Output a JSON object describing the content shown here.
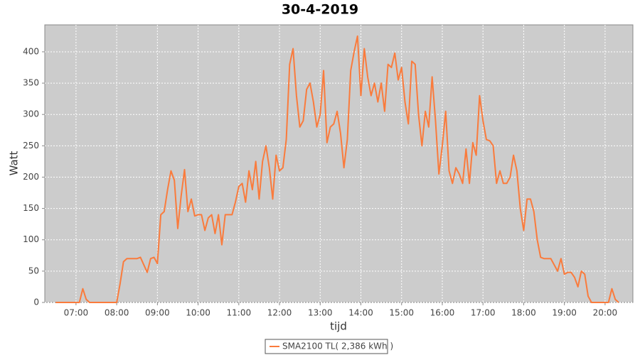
{
  "chart_data": {
    "type": "line",
    "title": "30-4-2019",
    "x_label": "tijd",
    "y_label": "Watt",
    "x": [
      "06:30",
      "06:35",
      "06:40",
      "06:45",
      "06:50",
      "06:55",
      "07:00",
      "07:05",
      "07:10",
      "07:15",
      "07:20",
      "07:25",
      "07:30",
      "07:35",
      "07:40",
      "07:45",
      "07:50",
      "07:55",
      "08:00",
      "08:05",
      "08:10",
      "08:15",
      "08:20",
      "08:25",
      "08:30",
      "08:35",
      "08:40",
      "08:45",
      "08:50",
      "08:55",
      "09:00",
      "09:05",
      "09:10",
      "09:15",
      "09:20",
      "09:25",
      "09:30",
      "09:35",
      "09:40",
      "09:45",
      "09:50",
      "09:55",
      "10:00",
      "10:05",
      "10:10",
      "10:15",
      "10:20",
      "10:25",
      "10:30",
      "10:35",
      "10:40",
      "10:45",
      "10:50",
      "10:55",
      "11:00",
      "11:05",
      "11:10",
      "11:15",
      "11:20",
      "11:25",
      "11:30",
      "11:35",
      "11:40",
      "11:45",
      "11:50",
      "11:55",
      "12:00",
      "12:05",
      "12:10",
      "12:15",
      "12:20",
      "12:25",
      "12:30",
      "12:35",
      "12:40",
      "12:45",
      "12:50",
      "12:55",
      "13:00",
      "13:05",
      "13:10",
      "13:15",
      "13:20",
      "13:25",
      "13:30",
      "13:35",
      "13:40",
      "13:45",
      "13:50",
      "13:55",
      "14:00",
      "14:05",
      "14:10",
      "14:15",
      "14:20",
      "14:25",
      "14:30",
      "14:35",
      "14:40",
      "14:45",
      "14:50",
      "14:55",
      "15:00",
      "15:05",
      "15:10",
      "15:15",
      "15:20",
      "15:25",
      "15:30",
      "15:35",
      "15:40",
      "15:45",
      "15:50",
      "15:55",
      "16:00",
      "16:05",
      "16:10",
      "16:15",
      "16:20",
      "16:25",
      "16:30",
      "16:35",
      "16:40",
      "16:45",
      "16:50",
      "16:55",
      "17:00",
      "17:05",
      "17:10",
      "17:15",
      "17:20",
      "17:25",
      "17:30",
      "17:35",
      "17:40",
      "17:45",
      "17:50",
      "17:55",
      "18:00",
      "18:05",
      "18:10",
      "18:15",
      "18:20",
      "18:25",
      "18:30",
      "18:35",
      "18:40",
      "18:45",
      "18:50",
      "18:55",
      "19:00",
      "19:05",
      "19:10",
      "19:15",
      "19:20",
      "19:25",
      "19:30",
      "19:35",
      "19:40",
      "19:45",
      "19:50",
      "19:55",
      "20:00",
      "20:05",
      "20:10",
      "20:15",
      "20:20"
    ],
    "series": [
      {
        "name": "SMA2100 TL( 2,386 kWh )",
        "color": "#fa7b3c",
        "values": [
          0,
          0,
          0,
          0,
          0,
          0,
          0,
          0,
          22,
          5,
          0,
          0,
          0,
          0,
          0,
          0,
          0,
          0,
          0,
          30,
          65,
          70,
          70,
          70,
          70,
          72,
          60,
          48,
          70,
          72,
          62,
          140,
          145,
          180,
          210,
          195,
          118,
          170,
          212,
          145,
          165,
          138,
          140,
          140,
          115,
          135,
          140,
          110,
          140,
          92,
          140,
          140,
          140,
          160,
          185,
          190,
          160,
          210,
          180,
          225,
          165,
          225,
          250,
          215,
          165,
          235,
          210,
          215,
          260,
          380,
          405,
          330,
          280,
          290,
          340,
          350,
          320,
          280,
          300,
          370,
          255,
          280,
          285,
          305,
          270,
          215,
          260,
          370,
          400,
          425,
          330,
          405,
          360,
          330,
          350,
          320,
          350,
          305,
          380,
          375,
          398,
          355,
          375,
          320,
          285,
          385,
          380,
          300,
          250,
          305,
          280,
          360,
          290,
          205,
          250,
          305,
          210,
          190,
          215,
          205,
          190,
          245,
          190,
          255,
          235,
          330,
          290,
          260,
          258,
          250,
          190,
          210,
          190,
          190,
          200,
          235,
          210,
          150,
          115,
          165,
          165,
          145,
          100,
          72,
          70,
          70,
          70,
          60,
          50,
          70,
          45,
          48,
          48,
          40,
          25,
          50,
          45,
          10,
          0,
          0,
          0,
          0,
          0,
          0,
          22,
          5,
          0
        ]
      }
    ],
    "xlim": [
      "06:14",
      "20:41"
    ],
    "xticks": [
      "07:00",
      "08:00",
      "09:00",
      "10:00",
      "11:00",
      "12:00",
      "13:00",
      "14:00",
      "15:00",
      "16:00",
      "17:00",
      "18:00",
      "19:00",
      "20:00"
    ],
    "ylim": [
      0,
      443
    ],
    "yticks": [
      0,
      50,
      100,
      150,
      200,
      250,
      300,
      350,
      400
    ],
    "grid": true,
    "legend": "bottom"
  }
}
